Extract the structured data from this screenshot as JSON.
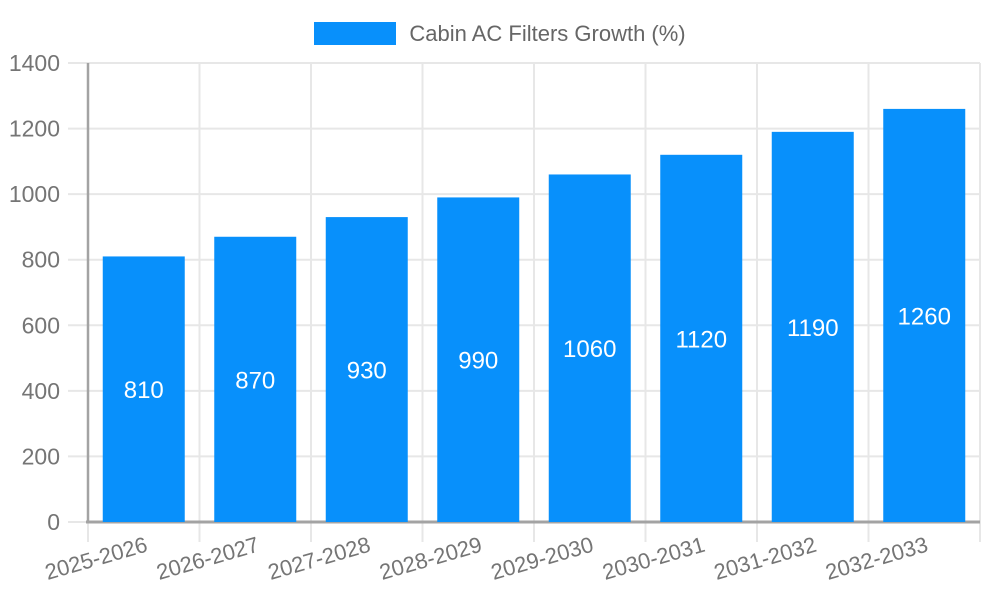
{
  "legend": {
    "label": "Cabin AC Filters Growth (%)",
    "swatch_color": "#0890fb"
  },
  "chart_data": {
    "type": "bar",
    "title": "Cabin AC Filters Growth (%)",
    "categories": [
      "2025-2026",
      "2026-2027",
      "2027-2028",
      "2028-2029",
      "2029-2030",
      "2030-2031",
      "2031-2032",
      "2032-2033"
    ],
    "values": [
      810,
      870,
      930,
      990,
      1060,
      1120,
      1190,
      1260
    ],
    "xlabel": "",
    "ylabel": "",
    "ylim": [
      0,
      1400
    ],
    "yticks": [
      0,
      200,
      400,
      600,
      800,
      1000,
      1200,
      1400
    ],
    "grid": true,
    "legend_position": "top-center",
    "bar_color": "#0890fb",
    "value_label_color": "#ffffff",
    "tick_label_color": "#757575",
    "grid_color": "#e7e7e7",
    "axis_line_color": "#a3a3a3",
    "x_label_rotation_deg": -16
  }
}
